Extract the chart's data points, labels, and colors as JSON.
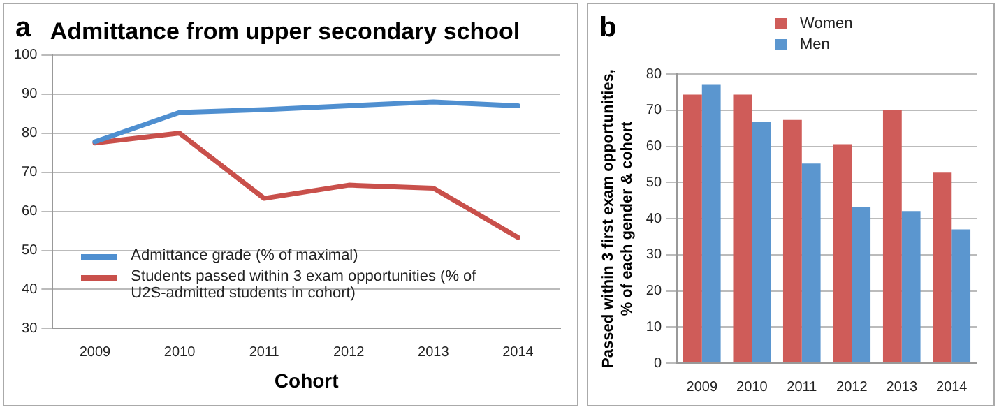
{
  "chart_data": [
    {
      "type": "line",
      "title": "Admittance from upper secondary school",
      "xlabel": "Cohort",
      "categories": [
        "2009",
        "2010",
        "2011",
        "2012",
        "2013",
        "2014"
      ],
      "series": [
        {
          "name": "Admittance grade (% of maximal)",
          "color": "#4f8fd0",
          "values": [
            77.8,
            85.3,
            86,
            87,
            88,
            87
          ]
        },
        {
          "name": "Students passed within 3 exam opportunities (% of U2S-admitted students in cohort)",
          "color": "#c9504b",
          "values": [
            77.5,
            80,
            63.3,
            66.7,
            65.9,
            53.3
          ]
        }
      ],
      "ylim": [
        30,
        100
      ],
      "yticks": [
        30,
        40,
        50,
        60,
        70,
        80,
        90,
        100
      ],
      "grid": "y",
      "legend": "bottom left",
      "marker": "none",
      "line_style": "solid",
      "annotations": [
        "a"
      ]
    },
    {
      "type": "bar",
      "ylabel": "Passed within 3 first exam opportunities, % of each gender & cohort",
      "categories": [
        "2009",
        "2010",
        "2011",
        "2012",
        "2013",
        "2014"
      ],
      "series": [
        {
          "name": "Women",
          "color": "#cf5c59",
          "values": [
            74.3,
            74.3,
            67.3,
            60.6,
            70.1,
            52.7
          ]
        },
        {
          "name": "Men",
          "color": "#5b96cf",
          "values": [
            77,
            66.7,
            55.2,
            43.1,
            42.1,
            37
          ]
        }
      ],
      "ylim": [
        0,
        80
      ],
      "yticks": [
        0,
        10,
        20,
        30,
        40,
        50,
        60,
        70,
        80
      ],
      "grid": "y",
      "legend": "top",
      "annotations": [
        "b"
      ]
    }
  ]
}
